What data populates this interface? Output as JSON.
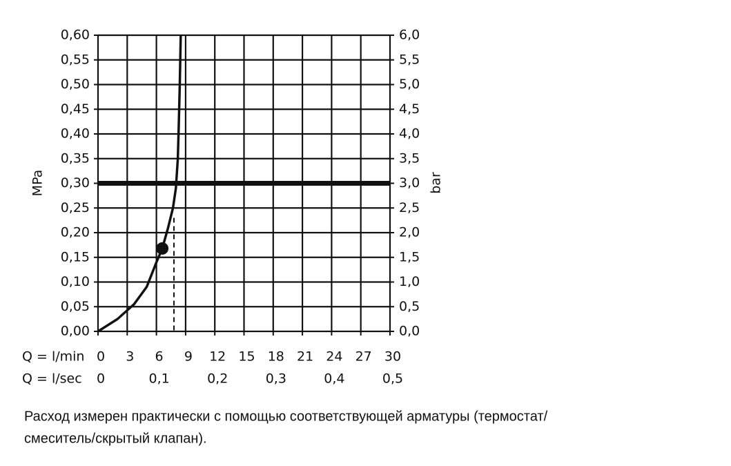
{
  "chart_data": {
    "type": "line",
    "xlabel": "Q = l/min",
    "x2label": "Q = l/sec",
    "ylabel": "MPa",
    "y2label": "bar",
    "xlim": [
      0,
      30
    ],
    "xticks": [
      0,
      3,
      6,
      9,
      12,
      15,
      18,
      21,
      24,
      27,
      30
    ],
    "x2lim": [
      0,
      0.5
    ],
    "x2ticks": [
      0,
      {
        "value": 0.1,
        "label": "0,1"
      },
      {
        "value": 0.2,
        "label": "0,2"
      },
      {
        "value": 0.3,
        "label": "0,3"
      },
      {
        "value": 0.4,
        "label": "0,4"
      },
      {
        "value": 0.5,
        "label": "0,5"
      }
    ],
    "ylim": [
      0,
      0.6
    ],
    "yticks": [
      {
        "value": 0,
        "label": "0,00"
      },
      {
        "value": 0.05,
        "label": "0,05"
      },
      {
        "value": 0.1,
        "label": "0,10"
      },
      {
        "value": 0.15,
        "label": "0,15"
      },
      {
        "value": 0.2,
        "label": "0,20"
      },
      {
        "value": 0.25,
        "label": "0,25"
      },
      {
        "value": 0.3,
        "label": "0,30"
      },
      {
        "value": 0.35,
        "label": "0,35"
      },
      {
        "value": 0.4,
        "label": "0,40"
      },
      {
        "value": 0.45,
        "label": "0,45"
      },
      {
        "value": 0.5,
        "label": "0,50"
      },
      {
        "value": 0.55,
        "label": "0,55"
      },
      {
        "value": 0.6,
        "label": "0,60"
      }
    ],
    "y2lim": [
      0,
      6
    ],
    "y2ticks": [
      {
        "value": 0,
        "label": "0,0"
      },
      {
        "value": 0.5,
        "label": "0,5"
      },
      {
        "value": 1,
        "label": "1,0"
      },
      {
        "value": 1.5,
        "label": "1,5"
      },
      {
        "value": 2,
        "label": "2,0"
      },
      {
        "value": 2.5,
        "label": "2,5"
      },
      {
        "value": 3,
        "label": "3,0"
      },
      {
        "value": 3.5,
        "label": "3,5"
      },
      {
        "value": 4,
        "label": "4,0"
      },
      {
        "value": 4.5,
        "label": "4,5"
      },
      {
        "value": 5,
        "label": "5,0"
      },
      {
        "value": 5.5,
        "label": "5,5"
      },
      {
        "value": 6,
        "label": "6,0"
      }
    ],
    "grid": true,
    "series": [
      {
        "color": "#111111",
        "x": [
          0,
          2,
          3.7,
          5,
          6,
          6.6,
          7.2,
          7.7,
          8.0,
          8.2,
          8.3,
          8.4,
          8.5
        ],
        "values": [
          0,
          0.025,
          0.055,
          0.09,
          0.14,
          0.168,
          0.21,
          0.25,
          0.29,
          0.35,
          0.42,
          0.5,
          0.6
        ]
      }
    ],
    "marker": {
      "x": 6.6,
      "y": 0.168
    },
    "reference_x": {
      "x": 7.8,
      "y": 0.23
    },
    "reference_y": 0.3,
    "caption": [
      "Расход измерен практически с помощью соответствующей арматуры (термостат/",
      "смеситель/скрытый клапан)."
    ]
  }
}
